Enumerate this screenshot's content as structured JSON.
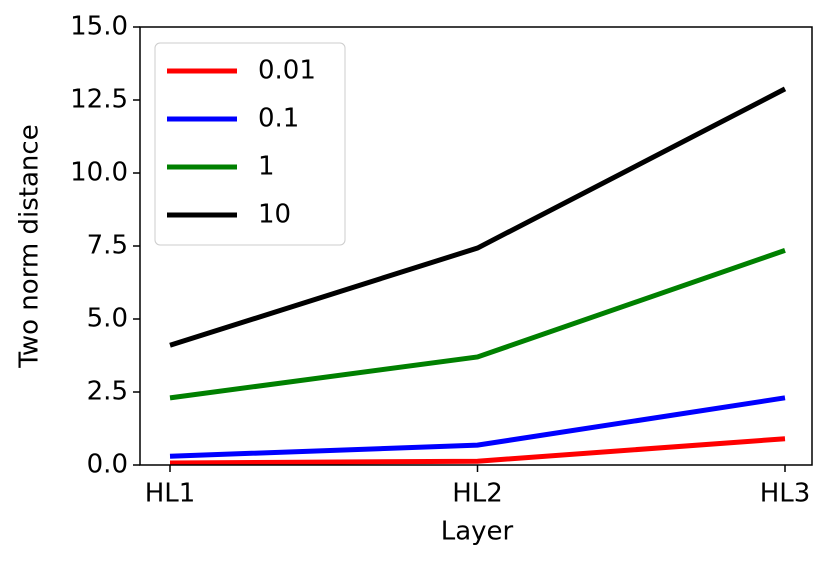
{
  "chart_data": {
    "type": "line",
    "xlabel": "Layer",
    "ylabel": "Two norm distance",
    "categories": [
      "HL1",
      "HL2",
      "HL3"
    ],
    "series": [
      {
        "name": "0.01",
        "color": "#ff0000",
        "values": [
          0.07,
          0.13,
          0.9
        ]
      },
      {
        "name": "0.1",
        "color": "#0000ff",
        "values": [
          0.3,
          0.68,
          2.3
        ]
      },
      {
        "name": "1",
        "color": "#008000",
        "values": [
          2.3,
          3.7,
          7.35
        ]
      },
      {
        "name": "10",
        "color": "#000000",
        "values": [
          4.1,
          7.43,
          12.88
        ]
      }
    ],
    "ylim": [
      0,
      15
    ],
    "yticks": [
      {
        "value": 0,
        "label": "0.0"
      },
      2.5,
      {
        "value": 5,
        "label": "5.0"
      },
      7.5,
      {
        "value": 10,
        "label": "10.0"
      },
      12.5,
      {
        "value": 15,
        "label": "15.0"
      }
    ],
    "grid": false,
    "legend": "upper left"
  }
}
